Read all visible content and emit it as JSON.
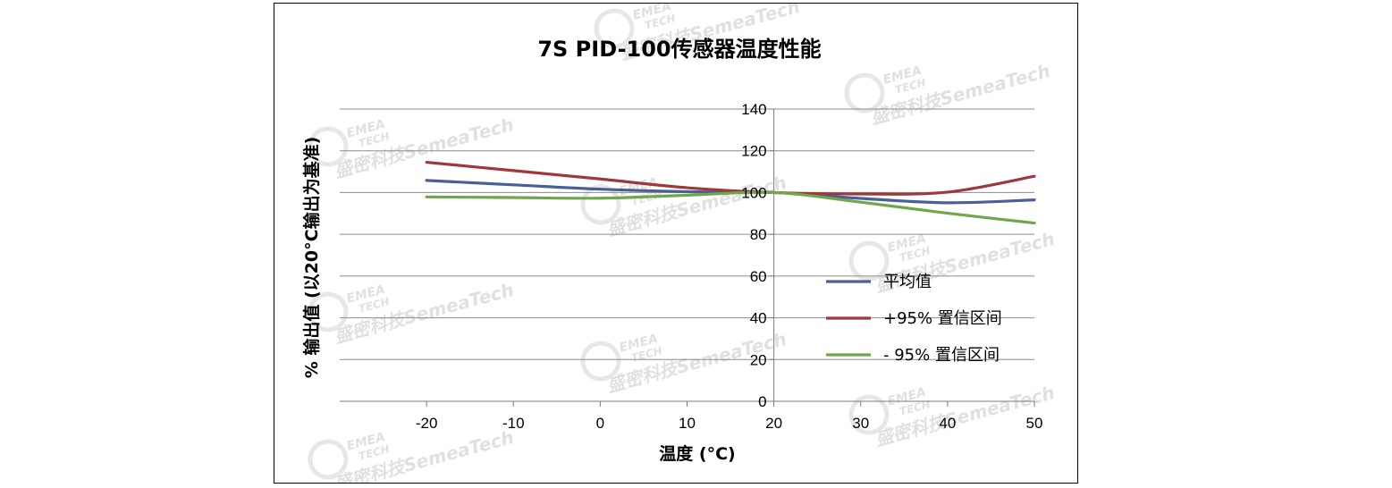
{
  "chart_data": {
    "type": "line",
    "title": "7S PID-100传感器温度性能",
    "xlabel": "温度 (°C)",
    "ylabel": "% 输出值 (以20°C输出为基准)",
    "x": [
      -20,
      -10,
      0,
      10,
      20,
      30,
      40,
      50
    ],
    "x_ticks": [
      "-20",
      "-10",
      "0",
      "10",
      "20",
      "30",
      "40",
      "50"
    ],
    "y_ticks": [
      "0",
      "20",
      "40",
      "60",
      "80",
      "100",
      "120",
      "140"
    ],
    "xlim": [
      -30,
      50
    ],
    "ylim": [
      0,
      140
    ],
    "grid": "horizontal",
    "legend_position": "bottom-right",
    "series": [
      {
        "name": "平均值",
        "color": "#4a5f96",
        "values": [
          105.8,
          103.7,
          101.6,
          100.4,
          100,
          97.2,
          95.1,
          96.5
        ]
      },
      {
        "name": "+95% 置信区间",
        "color": "#a0373a",
        "values": [
          114.5,
          110.5,
          106.5,
          102.3,
          100,
          99.3,
          100.2,
          107.8
        ]
      },
      {
        "name": "- 95% 置信区间",
        "color": "#70a74a",
        "values": [
          97.9,
          97.6,
          97.3,
          98.7,
          100,
          95.4,
          90.1,
          85.4
        ]
      }
    ]
  },
  "watermark": {
    "brand_top": "EMEA",
    "brand_bottom": "TECH",
    "text": "盛密科技SemeaTech"
  }
}
